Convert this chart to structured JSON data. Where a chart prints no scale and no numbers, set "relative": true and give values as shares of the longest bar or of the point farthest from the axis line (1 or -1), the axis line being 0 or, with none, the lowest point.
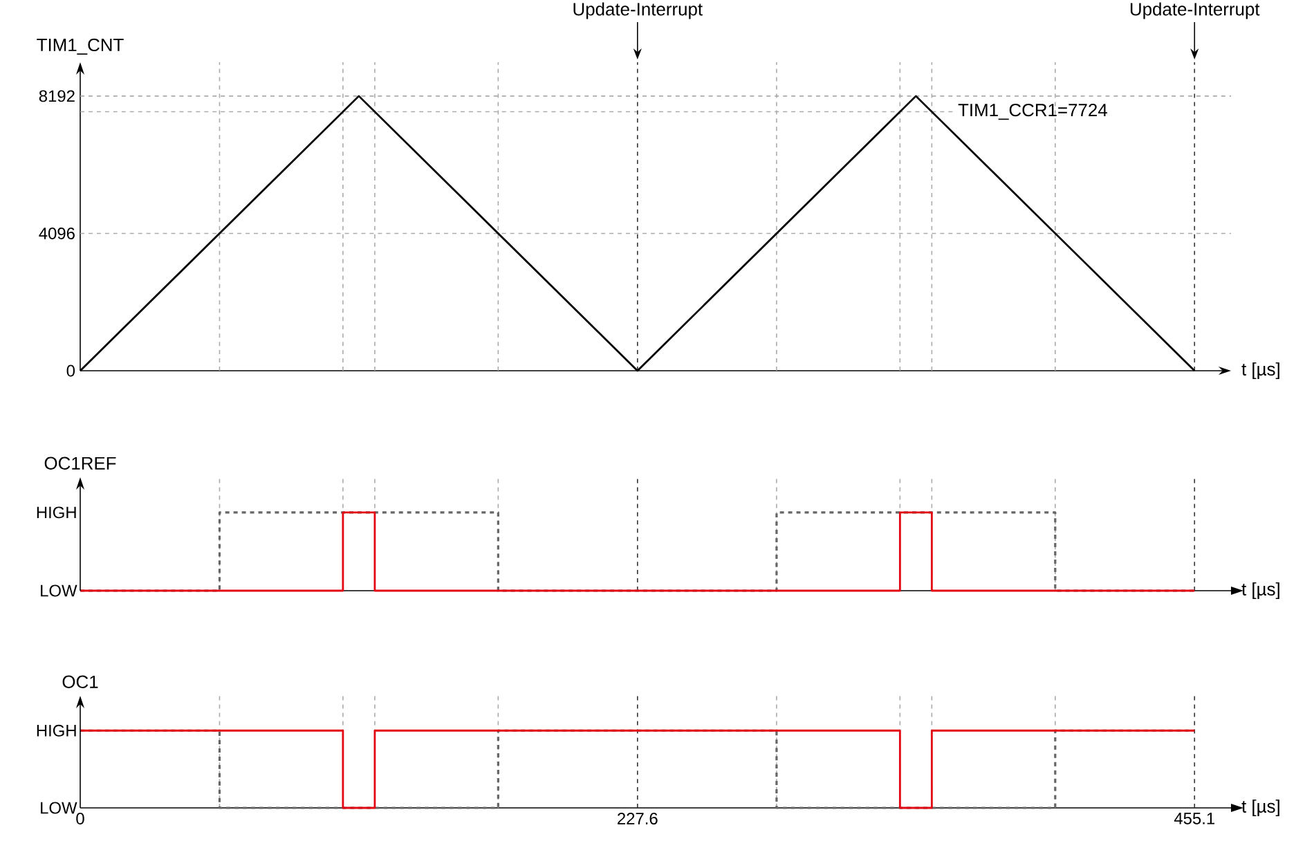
{
  "chart_data": [
    {
      "type": "line",
      "ylabel": "TIM1_CNT",
      "xlabel": "t [µs]",
      "xlim": [
        0,
        470
      ],
      "ylim": [
        0,
        9200
      ],
      "yticks": [
        0,
        4096,
        8192
      ],
      "tick_labels": "y",
      "series": [
        {
          "color": "#000000",
          "x": [
            0,
            113.8,
            227.6,
            341.3,
            455.1
          ],
          "values": [
            0,
            8192,
            0,
            8192,
            0
          ]
        }
      ],
      "ref_lines": [
        {
          "axis": "y",
          "value": 8192,
          "color": "#aaaaaa",
          "line_style": "dashed"
        },
        {
          "axis": "y",
          "value": 4096,
          "color": "#aaaaaa",
          "line_style": "dashed"
        },
        {
          "axis": "y",
          "value": 7724,
          "label": "TIM1_CCR1=7724",
          "color": "#aaaaaa",
          "line_style": "dashed"
        },
        {
          "axis": "x",
          "value": 56.9,
          "color": "#aaaaaa",
          "line_style": "dashed"
        },
        {
          "axis": "x",
          "value": 107.3,
          "color": "#aaaaaa",
          "line_style": "dashed"
        },
        {
          "axis": "x",
          "value": 120.3,
          "color": "#aaaaaa",
          "line_style": "dashed"
        },
        {
          "axis": "x",
          "value": 170.7,
          "color": "#aaaaaa",
          "line_style": "dashed"
        },
        {
          "axis": "x",
          "value": 284.4,
          "color": "#aaaaaa",
          "line_style": "dashed"
        },
        {
          "axis": "x",
          "value": 334.8,
          "color": "#aaaaaa",
          "line_style": "dashed"
        },
        {
          "axis": "x",
          "value": 347.8,
          "color": "#aaaaaa",
          "line_style": "dashed"
        },
        {
          "axis": "x",
          "value": 398.2,
          "color": "#aaaaaa",
          "line_style": "dashed"
        },
        {
          "axis": "x",
          "value": 227.6,
          "label": "Update-Interrupt",
          "color": "#333333",
          "line_style": "dashed"
        },
        {
          "axis": "x",
          "value": 455.1,
          "label": "Update-Interrupt",
          "color": "#333333",
          "line_style": "dashed"
        }
      ]
    },
    {
      "type": "step",
      "ylabel": "OC1REF",
      "xlabel": "t [µs]",
      "xlim": [
        0,
        470
      ],
      "relative": true,
      "annotations": [
        "LOW",
        "HIGH"
      ],
      "tick_labels": false,
      "series": [
        {
          "color": "#666666",
          "line_style": "dashed",
          "x": [
            0,
            56.9,
            170.7,
            284.4,
            398.2,
            455.1
          ],
          "values": [
            0,
            1,
            0,
            1,
            0,
            0
          ]
        },
        {
          "color": "#e30613",
          "x": [
            0,
            107.3,
            120.3,
            334.8,
            347.8,
            455.1
          ],
          "values": [
            0,
            1,
            0,
            1,
            0,
            0
          ]
        }
      ],
      "ref_lines": [
        {
          "axis": "x",
          "value": 56.9,
          "color": "#aaaaaa",
          "line_style": "dashed"
        },
        {
          "axis": "x",
          "value": 107.3,
          "color": "#aaaaaa",
          "line_style": "dashed"
        },
        {
          "axis": "x",
          "value": 120.3,
          "color": "#aaaaaa",
          "line_style": "dashed"
        },
        {
          "axis": "x",
          "value": 170.7,
          "color": "#aaaaaa",
          "line_style": "dashed"
        },
        {
          "axis": "x",
          "value": 284.4,
          "color": "#aaaaaa",
          "line_style": "dashed"
        },
        {
          "axis": "x",
          "value": 334.8,
          "color": "#aaaaaa",
          "line_style": "dashed"
        },
        {
          "axis": "x",
          "value": 347.8,
          "color": "#aaaaaa",
          "line_style": "dashed"
        },
        {
          "axis": "x",
          "value": 398.2,
          "color": "#aaaaaa",
          "line_style": "dashed"
        },
        {
          "axis": "x",
          "value": 227.6,
          "color": "#333333",
          "line_style": "dashed"
        },
        {
          "axis": "x",
          "value": 455.1,
          "color": "#333333",
          "line_style": "dashed"
        }
      ]
    },
    {
      "type": "step",
      "ylabel": "OC1",
      "xlabel": "t [µs]",
      "xlim": [
        0,
        470
      ],
      "relative": true,
      "annotations": [
        "LOW",
        "HIGH"
      ],
      "xticks": [
        0,
        227.6,
        455.1
      ],
      "tick_labels": "x",
      "series": [
        {
          "color": "#666666",
          "line_style": "dashed",
          "x": [
            0,
            56.9,
            170.7,
            284.4,
            398.2,
            455.1
          ],
          "values": [
            1,
            0,
            1,
            0,
            1,
            1
          ]
        },
        {
          "color": "#e30613",
          "x": [
            0,
            107.3,
            120.3,
            334.8,
            347.8,
            455.1
          ],
          "values": [
            1,
            0,
            1,
            0,
            1,
            1
          ]
        }
      ],
      "ref_lines": [
        {
          "axis": "x",
          "value": 56.9,
          "color": "#aaaaaa",
          "line_style": "dashed"
        },
        {
          "axis": "x",
          "value": 107.3,
          "color": "#aaaaaa",
          "line_style": "dashed"
        },
        {
          "axis": "x",
          "value": 120.3,
          "color": "#aaaaaa",
          "line_style": "dashed"
        },
        {
          "axis": "x",
          "value": 170.7,
          "color": "#aaaaaa",
          "line_style": "dashed"
        },
        {
          "axis": "x",
          "value": 284.4,
          "color": "#aaaaaa",
          "line_style": "dashed"
        },
        {
          "axis": "x",
          "value": 334.8,
          "color": "#aaaaaa",
          "line_style": "dashed"
        },
        {
          "axis": "x",
          "value": 347.8,
          "color": "#aaaaaa",
          "line_style": "dashed"
        },
        {
          "axis": "x",
          "value": 398.2,
          "color": "#aaaaaa",
          "line_style": "dashed"
        },
        {
          "axis": "x",
          "value": 227.6,
          "color": "#333333",
          "line_style": "dashed"
        },
        {
          "axis": "x",
          "value": 455.1,
          "color": "#333333",
          "line_style": "dashed"
        }
      ]
    }
  ]
}
